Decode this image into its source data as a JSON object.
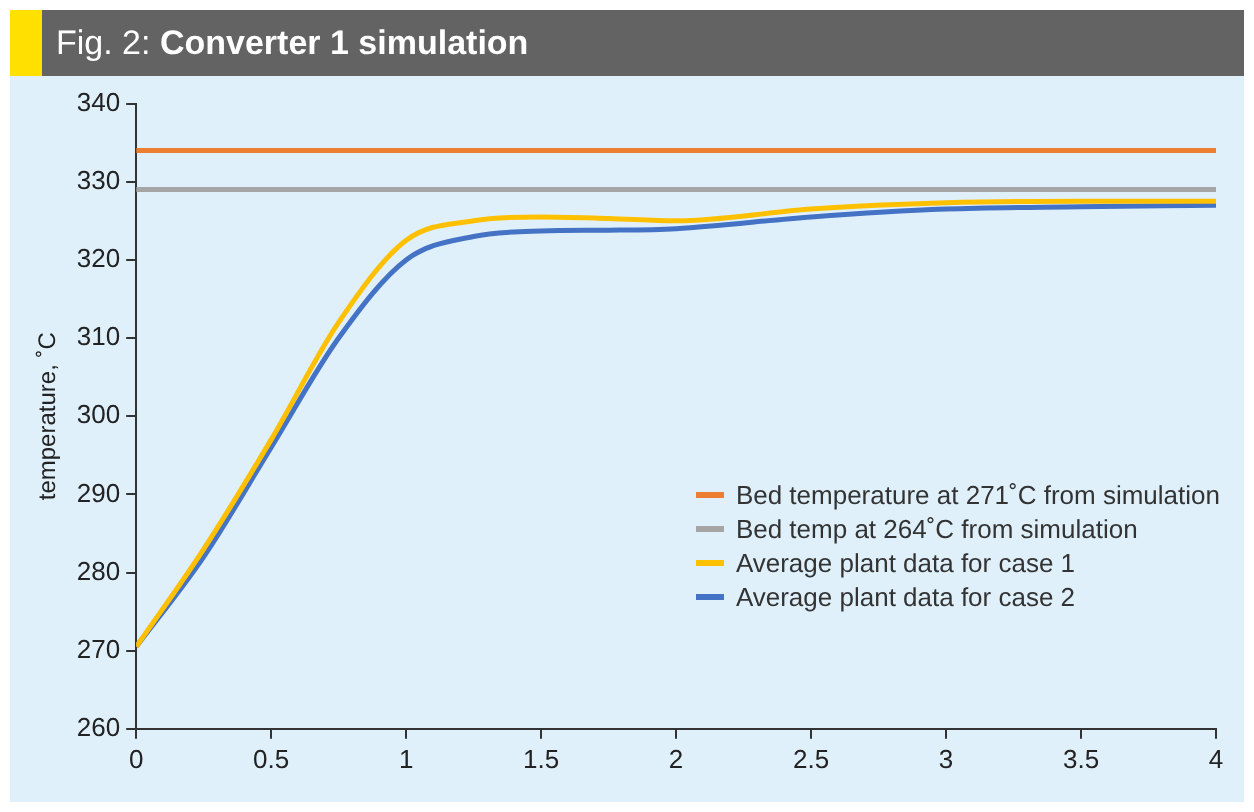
{
  "chart_data": {
    "type": "line",
    "title": "Fig. 2: Converter 1 simulation",
    "ylabel": "temperature, ˚C",
    "xlim": [
      0,
      4
    ],
    "xticks": [
      0,
      0.5,
      1,
      1.5,
      2,
      2.5,
      3,
      3.5,
      4
    ],
    "ylim": [
      260,
      340
    ],
    "yticks": [
      260,
      270,
      280,
      290,
      300,
      310,
      320,
      330,
      340
    ],
    "grid": false,
    "legend": "bottom right",
    "marker": "none",
    "line_style": "solid",
    "series": [
      {
        "name": "Bed temperature at 271˚C from simulation",
        "color": "#ed7d31",
        "x": [
          0,
          4
        ],
        "values": [
          334,
          334
        ]
      },
      {
        "name": "Bed temp at 264˚C from simulation",
        "color": "#a5a5a5",
        "x": [
          0,
          4
        ],
        "values": [
          329,
          329
        ]
      },
      {
        "name": "Average plant data for case 1",
        "color": "#ffc000",
        "x": [
          0,
          0.25,
          0.5,
          0.75,
          1,
          1.25,
          1.5,
          1.75,
          2,
          2.5,
          3,
          3.5,
          4
        ],
        "values": [
          270.5,
          283,
          297,
          312,
          322.5,
          325,
          325.5,
          325.3,
          325,
          326.5,
          327.3,
          327.5,
          327.5
        ]
      },
      {
        "name": "Average plant data for case 2",
        "color": "#4472c4",
        "x": [
          0,
          0.25,
          0.5,
          0.75,
          1,
          1.25,
          1.5,
          1.75,
          2,
          2.5,
          3,
          3.5,
          4
        ],
        "values": [
          270.5,
          282,
          296,
          310,
          320,
          323,
          323.7,
          323.8,
          324,
          325.5,
          326.5,
          326.8,
          327
        ]
      }
    ]
  }
}
